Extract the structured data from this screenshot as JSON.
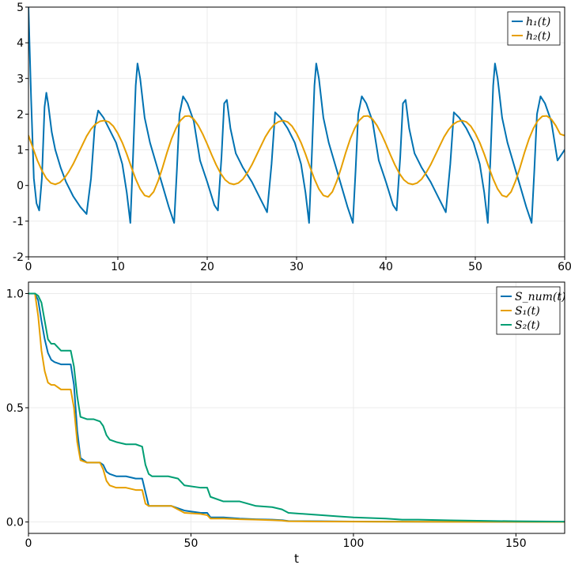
{
  "chart_data": [
    {
      "type": "line",
      "xlabel": "",
      "ylabel": "",
      "xlim": [
        0,
        60
      ],
      "ylim": [
        -2,
        5
      ],
      "xticks": [
        0,
        10,
        20,
        30,
        40,
        50,
        60
      ],
      "yticks": [
        -2,
        -1,
        0,
        1,
        2,
        3,
        4,
        5
      ],
      "xtick_labels": [
        "0",
        "10",
        "20",
        "30",
        "40",
        "50",
        "60"
      ],
      "ytick_labels": [
        "-2",
        "-1",
        "0",
        "1",
        "2",
        "3",
        "4",
        "5"
      ],
      "grid": true,
      "legend": "top-right",
      "series": [
        {
          "name": "h₁(t)",
          "color": "#0072b2",
          "x": [
            0,
            0.3,
            0.6,
            0.9,
            1.2,
            1.5,
            1.8,
            2.0,
            2.2,
            2.6,
            3.0,
            3.6,
            4.2,
            5.0,
            5.8,
            6.5,
            7.0,
            7.4,
            7.8,
            8.4,
            9.0,
            9.8,
            10.5,
            11.0,
            11.4,
            11.7,
            12.0,
            12.2,
            12.5,
            13.0,
            13.6,
            14.3,
            15.0,
            15.7,
            16.3,
            16.6,
            16.9,
            17.3,
            17.8,
            18.5,
            19.2,
            20.0,
            20.8,
            21.2,
            21.6,
            21.9,
            22.2,
            22.6,
            23.2,
            24.0,
            25.0,
            26.0,
            26.7,
            27.2,
            27.6,
            28.2,
            29.0,
            29.8,
            30.5,
            31.0,
            31.4,
            31.7,
            32.0,
            32.2,
            32.5,
            33.0,
            33.6,
            34.3,
            35.0,
            35.7,
            36.3,
            36.6,
            36.9,
            37.3,
            37.8,
            38.5,
            39.2,
            40.0,
            40.8,
            41.2,
            41.6,
            41.9,
            42.2,
            42.6,
            43.2,
            44.0,
            45.0,
            46.0,
            46.7,
            47.2,
            47.6,
            48.2,
            49.0,
            49.8,
            50.5,
            51.0,
            51.4,
            51.7,
            52.0,
            52.2,
            52.5,
            53.0,
            53.6,
            54.3,
            55.0,
            55.7,
            56.3,
            56.6,
            56.9,
            57.3,
            57.8,
            58.5,
            59.2,
            60.0
          ],
          "y": [
            5,
            2.4,
            0.2,
            -0.5,
            -0.7,
            0.2,
            2.2,
            2.6,
            2.3,
            1.5,
            1.0,
            0.5,
            0.1,
            -0.3,
            -0.6,
            -0.8,
            0.2,
            1.6,
            2.1,
            1.9,
            1.6,
            1.2,
            0.6,
            -0.2,
            -1.05,
            0.8,
            2.8,
            3.42,
            3.0,
            1.9,
            1.2,
            0.6,
            0.0,
            -0.6,
            -1.05,
            0.4,
            2.0,
            2.5,
            2.3,
            1.8,
            0.7,
            0.1,
            -0.55,
            -0.7,
            0.8,
            2.3,
            2.4,
            1.6,
            0.9,
            0.5,
            0.1,
            -0.4,
            -0.75,
            0.6,
            2.05,
            1.9,
            1.6,
            1.2,
            0.6,
            -0.2,
            -1.05,
            0.8,
            2.8,
            3.42,
            3.0,
            1.9,
            1.2,
            0.6,
            0.0,
            -0.6,
            -1.05,
            0.4,
            2.0,
            2.5,
            2.3,
            1.8,
            0.7,
            0.1,
            -0.55,
            -0.7,
            0.8,
            2.3,
            2.4,
            1.6,
            0.9,
            0.5,
            0.1,
            -0.4,
            -0.75,
            0.6,
            2.05,
            1.9,
            1.6,
            1.2,
            0.6,
            -0.2,
            -1.05,
            0.8,
            2.8,
            3.42,
            3.0,
            1.9,
            1.2,
            0.6,
            0.0,
            -0.6,
            -1.05,
            0.4,
            2.0,
            2.5,
            2.3,
            1.8,
            0.7,
            1.0
          ]
        },
        {
          "name": "h₂(t)",
          "color": "#e69f00",
          "x": [
            0,
            0.5,
            1.0,
            1.5,
            2.0,
            2.5,
            3.0,
            3.5,
            4.0,
            4.5,
            5.0,
            5.5,
            6.0,
            6.5,
            7.0,
            7.5,
            8.0,
            8.5,
            9.0,
            9.5,
            10.0,
            10.5,
            11.0,
            11.5,
            12.0,
            12.5,
            13.0,
            13.5,
            14.0,
            14.5,
            15.0,
            15.5,
            16.0,
            16.5,
            17.0,
            17.5,
            18.0,
            18.5,
            19.0,
            19.5,
            20.0,
            20.5,
            21.0,
            21.5,
            22.0,
            22.5,
            23.0,
            23.5,
            24.0,
            24.5,
            25.0,
            25.5,
            26.0,
            26.5,
            27.0,
            27.5,
            28.0,
            28.5,
            29.0,
            29.5,
            30.0,
            30.5,
            31.0,
            31.5,
            32.0,
            32.5,
            33.0,
            33.5,
            34.0,
            34.5,
            35.0,
            35.5,
            36.0,
            36.5,
            37.0,
            37.5,
            38.0,
            38.5,
            39.0,
            39.5,
            40.0,
            40.5,
            41.0,
            41.5,
            42.0,
            42.5,
            43.0,
            43.5,
            44.0,
            44.5,
            45.0,
            45.5,
            46.0,
            46.5,
            47.0,
            47.5,
            48.0,
            48.5,
            49.0,
            49.5,
            50.0,
            50.5,
            51.0,
            51.5,
            52.0,
            52.5,
            53.0,
            53.5,
            54.0,
            54.5,
            55.0,
            55.5,
            56.0,
            56.5,
            57.0,
            57.5,
            58.0,
            58.5,
            59.0,
            59.5,
            60.0
          ],
          "y": [
            1.4,
            1.05,
            0.7,
            0.42,
            0.2,
            0.07,
            0.03,
            0.08,
            0.2,
            0.38,
            0.6,
            0.86,
            1.12,
            1.38,
            1.58,
            1.72,
            1.8,
            1.82,
            1.78,
            1.66,
            1.46,
            1.2,
            0.88,
            0.52,
            0.18,
            -0.1,
            -0.28,
            -0.32,
            -0.18,
            0.12,
            0.5,
            0.92,
            1.3,
            1.6,
            1.82,
            1.94,
            1.95,
            1.86,
            1.68,
            1.44,
            1.16,
            0.86,
            0.58,
            0.34,
            0.16,
            0.06,
            0.03,
            0.07,
            0.18,
            0.36,
            0.58,
            0.84,
            1.1,
            1.36,
            1.56,
            1.71,
            1.79,
            1.82,
            1.78,
            1.66,
            1.46,
            1.2,
            0.88,
            0.52,
            0.18,
            -0.1,
            -0.28,
            -0.32,
            -0.18,
            0.12,
            0.5,
            0.92,
            1.3,
            1.6,
            1.82,
            1.94,
            1.95,
            1.86,
            1.68,
            1.44,
            1.16,
            0.86,
            0.58,
            0.34,
            0.16,
            0.06,
            0.03,
            0.07,
            0.18,
            0.36,
            0.58,
            0.84,
            1.1,
            1.36,
            1.56,
            1.71,
            1.79,
            1.82,
            1.78,
            1.66,
            1.46,
            1.2,
            0.88,
            0.52,
            0.18,
            -0.1,
            -0.28,
            -0.32,
            -0.18,
            0.12,
            0.5,
            0.92,
            1.3,
            1.6,
            1.82,
            1.94,
            1.95,
            1.86,
            1.68,
            1.44,
            1.4
          ]
        }
      ]
    },
    {
      "type": "line",
      "xlabel": "t",
      "ylabel": "",
      "xlim": [
        0,
        165
      ],
      "ylim": [
        -0.05,
        1.05
      ],
      "xticks": [
        0,
        50,
        100,
        150
      ],
      "yticks": [
        0.0,
        0.5,
        1.0
      ],
      "xtick_labels": [
        "0",
        "50",
        "100",
        "150"
      ],
      "ytick_labels": [
        "0.0",
        "0.5",
        "1.0"
      ],
      "grid": true,
      "legend": "top-right",
      "series": [
        {
          "name": "S_num(t)",
          "color": "#0072b2",
          "x": [
            0,
            2,
            3,
            4,
            5,
            6,
            7,
            8,
            10,
            12,
            13,
            14,
            15,
            16,
            18,
            20,
            22,
            23,
            24,
            25,
            27,
            30,
            33,
            35,
            36,
            37,
            40,
            44,
            48,
            53,
            55,
            56,
            60,
            65,
            70,
            75,
            78,
            80,
            90,
            100,
            110,
            120,
            130,
            140,
            150,
            165
          ],
          "y": [
            1.0,
            1.0,
            0.97,
            0.88,
            0.8,
            0.74,
            0.71,
            0.7,
            0.69,
            0.69,
            0.69,
            0.6,
            0.4,
            0.28,
            0.26,
            0.26,
            0.26,
            0.25,
            0.22,
            0.21,
            0.2,
            0.2,
            0.19,
            0.19,
            0.13,
            0.07,
            0.07,
            0.07,
            0.05,
            0.04,
            0.04,
            0.02,
            0.02,
            0.015,
            0.012,
            0.01,
            0.008,
            0.004,
            0.003,
            0.002,
            0.0015,
            0.001,
            0.001,
            0.0005,
            0.0005,
            0.0
          ]
        },
        {
          "name": "S₁(t)",
          "color": "#e69f00",
          "x": [
            0,
            2,
            3,
            4,
            5,
            6,
            7,
            8,
            10,
            12,
            13,
            14,
            15,
            16,
            18,
            20,
            22,
            23,
            24,
            25,
            27,
            30,
            33,
            35,
            36,
            37,
            40,
            44,
            48,
            53,
            55,
            56,
            60,
            65,
            70,
            75,
            78,
            80,
            90,
            100,
            110,
            120,
            130,
            140,
            150,
            165
          ],
          "y": [
            1.0,
            1.0,
            0.9,
            0.75,
            0.66,
            0.61,
            0.6,
            0.6,
            0.58,
            0.58,
            0.58,
            0.5,
            0.35,
            0.27,
            0.26,
            0.26,
            0.26,
            0.23,
            0.18,
            0.16,
            0.15,
            0.15,
            0.14,
            0.14,
            0.08,
            0.07,
            0.07,
            0.07,
            0.04,
            0.035,
            0.03,
            0.015,
            0.015,
            0.012,
            0.01,
            0.008,
            0.006,
            0.003,
            0.002,
            0.0015,
            0.001,
            0.001,
            0.0005,
            0.0005,
            0.0005,
            0.0
          ]
        },
        {
          "name": "S₂(t)",
          "color": "#009e73",
          "x": [
            0,
            2,
            3,
            4,
            5,
            6,
            7,
            8,
            10,
            12,
            13,
            14,
            15,
            16,
            18,
            20,
            22,
            23,
            24,
            25,
            27,
            30,
            33,
            35,
            36,
            37,
            38,
            40,
            43,
            46,
            48,
            53,
            55,
            56,
            60,
            65,
            70,
            75,
            78,
            80,
            90,
            95,
            100,
            110,
            115,
            120,
            130,
            140,
            150,
            165
          ],
          "y": [
            1.0,
            1.0,
            0.99,
            0.96,
            0.88,
            0.8,
            0.78,
            0.78,
            0.75,
            0.75,
            0.75,
            0.68,
            0.55,
            0.46,
            0.45,
            0.45,
            0.44,
            0.42,
            0.38,
            0.36,
            0.35,
            0.34,
            0.34,
            0.33,
            0.25,
            0.21,
            0.2,
            0.2,
            0.2,
            0.19,
            0.16,
            0.15,
            0.15,
            0.11,
            0.09,
            0.09,
            0.07,
            0.065,
            0.055,
            0.04,
            0.03,
            0.025,
            0.02,
            0.015,
            0.01,
            0.01,
            0.007,
            0.005,
            0.003,
            0.0015
          ]
        }
      ]
    }
  ]
}
